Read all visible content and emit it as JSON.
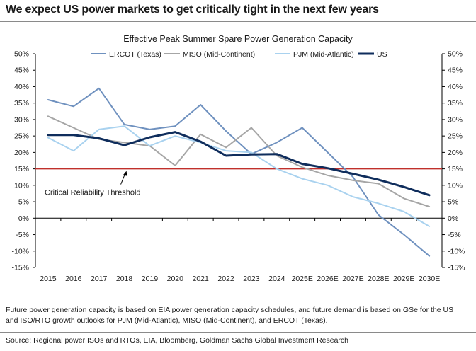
{
  "page": {
    "title": "We expect US power markets to get critically tight in the next few years",
    "footnote": "Future power generation capacity is based on EIA power generation capacity schedules, and future demand is based on GSe for the US and ISO/RTO growth outlooks for PJM (Mid-Atlantic), MISO (Mid-Continent), and ERCOT (Texas).",
    "source": "Source: Regional power ISOs and RTOs, EIA, Bloomberg, Goldman Sachs Global Investment Research"
  },
  "chart_data": {
    "type": "line",
    "title": "Effective Peak Summer Spare Power Generation Capacity",
    "categories": [
      "2015",
      "2016",
      "2017",
      "2018",
      "2019",
      "2020",
      "2021",
      "2022",
      "2023",
      "2024",
      "2025E",
      "2026E",
      "2027E",
      "2028E",
      "2029E",
      "2030E"
    ],
    "ylim": [
      -15,
      50
    ],
    "yticks": [
      50,
      45,
      40,
      35,
      30,
      25,
      20,
      15,
      10,
      5,
      0,
      -5,
      -10,
      -15
    ],
    "ytick_labels": [
      "50%",
      "45%",
      "40%",
      "35%",
      "30%",
      "25%",
      "20%",
      "15%",
      "10%",
      "5%",
      "0%",
      "-5%",
      "-10%",
      "-15%"
    ],
    "dual_y_axis": true,
    "grid": false,
    "legend_position": "top",
    "series": [
      {
        "name": "ERCOT (Texas)",
        "color": "#6f91bf",
        "width": 2,
        "values": [
          36,
          34,
          39.5,
          28.5,
          27,
          28,
          34.5,
          26.5,
          19.5,
          23,
          27.5,
          20,
          12.5,
          1,
          -5,
          -11.5
        ]
      },
      {
        "name": "MISO (Mid-Continent)",
        "color": "#a6a6a6",
        "width": 2,
        "values": [
          31,
          27.5,
          24,
          23,
          22,
          16,
          25.5,
          21.5,
          27.5,
          19,
          15.5,
          13,
          11.5,
          10.5,
          6,
          3.5
        ]
      },
      {
        "name": "PJM (Mid-Atlantic)",
        "color": "#a9d2ef",
        "width": 2,
        "values": [
          24.5,
          20.5,
          27,
          28,
          22,
          25,
          23,
          20.5,
          20,
          15,
          12,
          10,
          6.5,
          4.5,
          2,
          -2.5
        ]
      },
      {
        "name": "US",
        "color": "#0f2d5c",
        "width": 3,
        "values": [
          25.3,
          25.3,
          24.3,
          22.2,
          24.6,
          26.2,
          23.3,
          19,
          19.4,
          19.5,
          16.5,
          15.2,
          13.5,
          11.7,
          9.5,
          7
        ]
      }
    ],
    "threshold": {
      "value": 15,
      "color": "#c0302c",
      "label": "Critical Reliability Threshold"
    }
  }
}
